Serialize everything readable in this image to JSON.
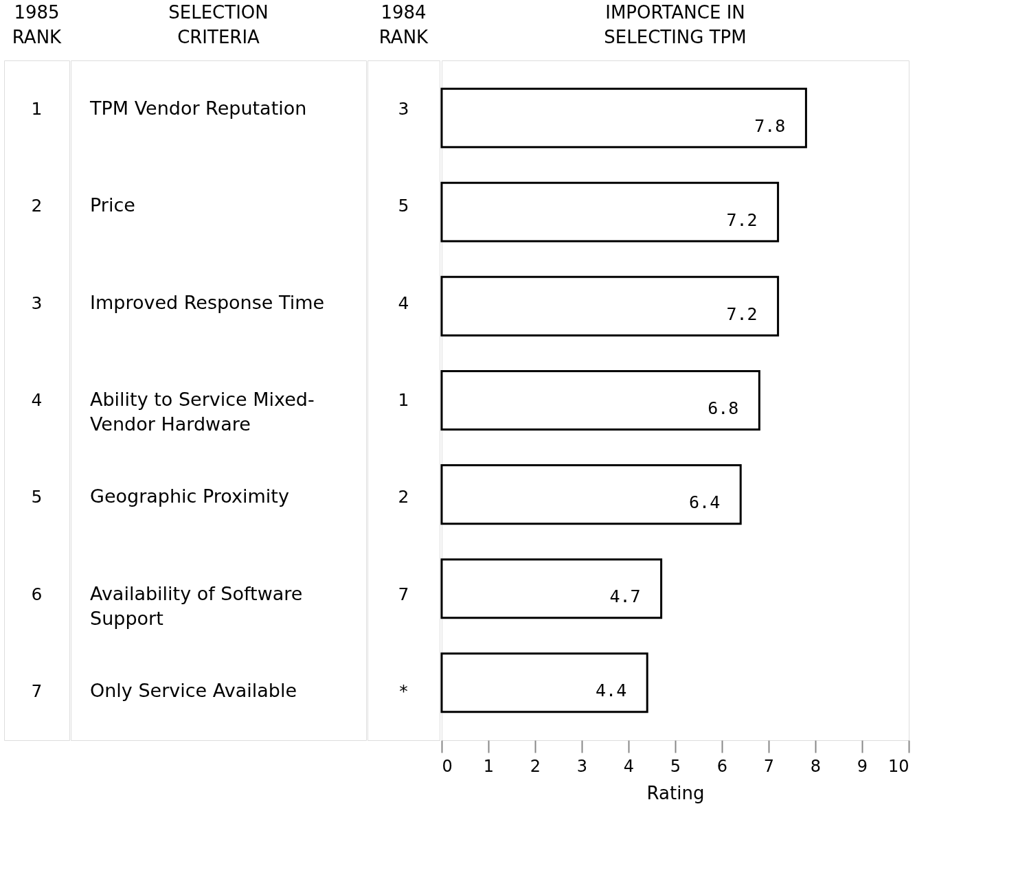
{
  "chart_data": {
    "type": "bar",
    "orientation": "horizontal",
    "title": "IMPORTANCE IN\nSELECTING TPM",
    "ylabel": "SELECTION\nCRITERIA",
    "xlabel": "Rating",
    "categories": [
      "TPM Vendor Reputation",
      "Price",
      "Improved Response Time",
      "Ability to Service Mixed-\nVendor Hardware",
      "Geographic Proximity",
      "Availability of Software\nSupport",
      "Only Service Available"
    ],
    "values": [
      7.8,
      7.2,
      7.2,
      6.8,
      6.4,
      4.7,
      4.4
    ],
    "color": "#ffffff",
    "data_labels": true,
    "xlim": [
      0,
      10
    ],
    "xticks": [
      0,
      1,
      2,
      3,
      4,
      5,
      6,
      7,
      8,
      9,
      10
    ],
    "grid": false,
    "annotations": [
      "1985\nRANK",
      "1",
      "2",
      "3",
      "4",
      "5",
      "6",
      "7",
      "1984\nRANK",
      "3",
      "5",
      "4",
      "1",
      "2",
      "7",
      "*"
    ]
  }
}
